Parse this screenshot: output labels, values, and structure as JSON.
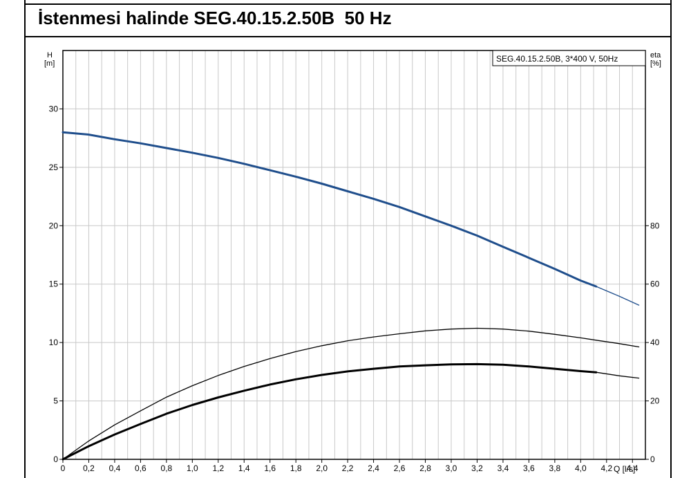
{
  "page": {
    "title": "İstenmesi halinde SEG.40.15.2.50B  50 Hz"
  },
  "chart_data": {
    "type": "line",
    "legend": "SEG.40.15.2.50B, 3*400 V, 50Hz",
    "legend_position": "top-right",
    "grid": true,
    "x": {
      "label": "Q [l/s]",
      "range": [
        0,
        4.5
      ],
      "ticks": [
        0,
        0.2,
        0.4,
        0.6,
        0.8,
        1.0,
        1.2,
        1.4,
        1.6,
        1.8,
        2.0,
        2.2,
        2.4,
        2.6,
        2.8,
        3.0,
        3.2,
        3.4,
        3.6,
        3.8,
        4.0,
        4.2,
        4.4
      ],
      "tick_labels": [
        "0",
        "0,2",
        "0,4",
        "0,6",
        "0,8",
        "1,0",
        "1,2",
        "1,4",
        "1,6",
        "1,8",
        "2,0",
        "2,2",
        "2,4",
        "2,6",
        "2,8",
        "3,0",
        "3,2",
        "3,4",
        "3,6",
        "3,8",
        "4,0",
        "4,2",
        "4,4"
      ]
    },
    "y_left": {
      "label_top": "H",
      "label_unit": "[m]",
      "range": [
        0,
        35
      ],
      "ticks": [
        0,
        5,
        10,
        15,
        20,
        25,
        30
      ],
      "tick_labels": [
        "0",
        "5",
        "10",
        "15",
        "20",
        "25",
        "30"
      ]
    },
    "y_right": {
      "label_top": "eta",
      "label_unit": "[%]",
      "range": [
        0,
        140
      ],
      "ticks": [
        0,
        20,
        40,
        60,
        80
      ],
      "tick_labels": [
        "0",
        "20",
        "40",
        "60",
        "80"
      ]
    },
    "series": [
      {
        "axis": "left",
        "color": "#1f4e8c",
        "line": "thick",
        "x": [
          0,
          0.2,
          0.4,
          0.6,
          0.8,
          1.0,
          1.2,
          1.4,
          1.6,
          1.8,
          2.0,
          2.2,
          2.4,
          2.6,
          2.8,
          3.0,
          3.2,
          3.4,
          3.6,
          3.8,
          4.0,
          4.12
        ],
        "values": [
          28.0,
          27.8,
          27.4,
          27.05,
          26.65,
          26.25,
          25.8,
          25.3,
          24.75,
          24.2,
          23.6,
          22.95,
          22.3,
          21.6,
          20.8,
          20.0,
          19.15,
          18.2,
          17.25,
          16.3,
          15.3,
          14.8
        ]
      },
      {
        "axis": "left",
        "color": "#1f4e8c",
        "line": "thin",
        "x": [
          4.12,
          4.3,
          4.45
        ],
        "values": [
          14.8,
          13.95,
          13.2
        ]
      },
      {
        "axis": "right",
        "color": "#000000",
        "line": "thin",
        "x": [
          0,
          0.2,
          0.4,
          0.6,
          0.8,
          1.0,
          1.2,
          1.4,
          1.6,
          1.8,
          2.0,
          2.2,
          2.4,
          2.6,
          2.8,
          3.0,
          3.2,
          3.4,
          3.6,
          3.8,
          4.0,
          4.12
        ],
        "values": [
          0,
          6.3,
          11.8,
          16.6,
          21.3,
          25.2,
          28.7,
          31.8,
          34.5,
          36.9,
          38.9,
          40.6,
          41.9,
          43.0,
          44.0,
          44.6,
          44.9,
          44.6,
          43.9,
          42.8,
          41.6,
          40.8
        ]
      },
      {
        "axis": "right",
        "color": "#000000",
        "line": "thin",
        "x": [
          4.12,
          4.3,
          4.45
        ],
        "values": [
          40.8,
          39.6,
          38.5
        ]
      },
      {
        "axis": "right",
        "color": "#000000",
        "line": "thick",
        "x": [
          0,
          0.2,
          0.4,
          0.6,
          0.8,
          1.0,
          1.2,
          1.4,
          1.6,
          1.8,
          2.0,
          2.2,
          2.4,
          2.6,
          2.8,
          3.0,
          3.2,
          3.4,
          3.6,
          3.8,
          4.0,
          4.12
        ],
        "values": [
          0,
          4.5,
          8.5,
          12.1,
          15.6,
          18.6,
          21.2,
          23.5,
          25.6,
          27.4,
          28.9,
          30.1,
          31.0,
          31.8,
          32.2,
          32.5,
          32.6,
          32.4,
          31.8,
          31.0,
          30.2,
          29.8
        ]
      },
      {
        "axis": "right",
        "color": "#000000",
        "line": "thin",
        "x": [
          4.12,
          4.3,
          4.45
        ],
        "values": [
          29.8,
          28.6,
          27.8
        ]
      }
    ]
  }
}
